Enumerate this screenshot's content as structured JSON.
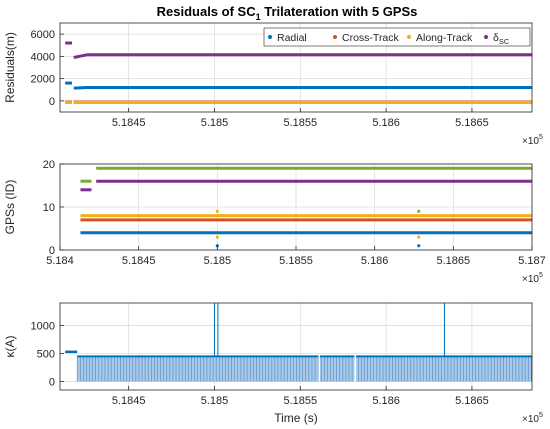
{
  "figure": {
    "title_main": "Residuals of SC",
    "title_sub": "1",
    "title_rest": " Trilateration with 5 GPSs"
  },
  "chart_data": [
    {
      "type": "scatter",
      "ylabel": "Residuals(m)",
      "xlabel": "",
      "xlim": [
        518410,
        518685
      ],
      "ylim": [
        -1000,
        7000
      ],
      "xticks": [
        518450,
        518500,
        518550,
        518600,
        518650
      ],
      "xtick_labels": [
        "5.1845",
        "5.185",
        "5.1855",
        "5.186",
        "5.1865"
      ],
      "yticks": [
        0,
        2000,
        4000,
        6000
      ],
      "ytick_labels": [
        "0",
        "2000",
        "4000",
        "6000"
      ],
      "x_exponent": "×10",
      "x_exponent_power": "5",
      "grid": true,
      "legend_position": "top-right",
      "series": [
        {
          "name": "Radial",
          "color": "#0072BD",
          "segments": [
            {
              "x": [
                518413,
                518417
              ],
              "y": 1600
            },
            {
              "x": [
                518418,
                518685
              ],
              "y": 1200,
              "start_y": 1150
            }
          ]
        },
        {
          "name": "Cross-Track",
          "color": "#D95319",
          "segments": [
            {
              "x": [
                518413,
                518417
              ],
              "y": -100
            },
            {
              "x": [
                518418,
                518685
              ],
              "y": -100
            }
          ]
        },
        {
          "name": "Along-Track",
          "color": "#EDB120",
          "segments": [
            {
              "x": [
                518413,
                518417
              ],
              "y": -150
            },
            {
              "x": [
                518418,
                518685
              ],
              "y": -150
            }
          ]
        },
        {
          "name": "δ",
          "name_sub": "SC",
          "color": "#7E2F8E",
          "segments": [
            {
              "x": [
                518413,
                518417
              ],
              "y": 5200
            },
            {
              "x": [
                518418,
                518685
              ],
              "y": 4150,
              "start_y": 3900
            }
          ]
        }
      ]
    },
    {
      "type": "scatter",
      "ylabel": "GPSs (ID)",
      "xlabel": "",
      "xlim": [
        518400,
        518700
      ],
      "ylim": [
        0,
        20
      ],
      "xticks": [
        518400,
        518450,
        518500,
        518550,
        518600,
        518650,
        518700
      ],
      "xtick_labels": [
        "5.184",
        "5.1845",
        "5.185",
        "5.1855",
        "5.186",
        "5.1865",
        "5.187"
      ],
      "yticks": [
        0,
        10,
        20
      ],
      "ytick_labels": [
        "0",
        "10",
        "20"
      ],
      "x_exponent": "×10",
      "x_exponent_power": "5",
      "grid": true,
      "series": [
        {
          "color": "#77AC30",
          "segments": [
            {
              "x": [
                518423,
                518700
              ],
              "y": 19
            }
          ]
        },
        {
          "color": "#7E2F8E",
          "segments": [
            {
              "x": [
                518423,
                518700
              ],
              "y": 16
            }
          ]
        },
        {
          "color": "#EDB120",
          "segments": [
            {
              "x": [
                518413,
                518700
              ],
              "y": 8
            }
          ]
        },
        {
          "color": "#D95319",
          "segments": [
            {
              "x": [
                518413,
                518700
              ],
              "y": 7
            }
          ]
        },
        {
          "color": "#0072BD",
          "segments": [
            {
              "x": [
                518413,
                518700
              ],
              "y": 4
            }
          ]
        },
        {
          "color": "#77AC30",
          "segments": [
            {
              "x": [
                518413,
                518420
              ],
              "y": 16
            }
          ]
        },
        {
          "color": "#7E2F8E",
          "segments": [
            {
              "x": [
                518413,
                518420
              ],
              "y": 14
            }
          ]
        }
      ],
      "outliers": [
        {
          "x": 518500,
          "y": 9,
          "color": "#EDB120"
        },
        {
          "x": 518500,
          "y": 3,
          "color": "#EDB120"
        },
        {
          "x": 518500,
          "y": 1,
          "color": "#0072BD"
        },
        {
          "x": 518628,
          "y": 9,
          "color": "#77AC30"
        },
        {
          "x": 518628,
          "y": 3,
          "color": "#EDB120"
        },
        {
          "x": 518628,
          "y": 1,
          "color": "#0072BD"
        }
      ]
    },
    {
      "type": "line",
      "ylabel": "κ(A)",
      "xlabel": "Time (s)",
      "xlim": [
        518410,
        518685
      ],
      "ylim": [
        -150,
        1400
      ],
      "xticks": [
        518450,
        518500,
        518550,
        518600,
        518650
      ],
      "xtick_labels": [
        "5.1845",
        "5.185",
        "5.1855",
        "5.186",
        "5.1865"
      ],
      "yticks": [
        0,
        500,
        1000
      ],
      "ytick_labels": [
        "0",
        "500",
        "1000"
      ],
      "x_exponent": "×10",
      "x_exponent_power": "5",
      "grid": true,
      "series": [
        {
          "color": "#0072BD",
          "baseline": 450,
          "initial": 530,
          "initial_range": [
            518413,
            518420
          ],
          "range": [
            518420,
            518685
          ],
          "spikes": [
            {
              "x": 518500,
              "y": 1400
            },
            {
              "x": 518502,
              "y": 1400
            },
            {
              "x": 518634,
              "y": 1400
            }
          ],
          "gaps": [
            518561,
            518582
          ]
        }
      ]
    }
  ]
}
